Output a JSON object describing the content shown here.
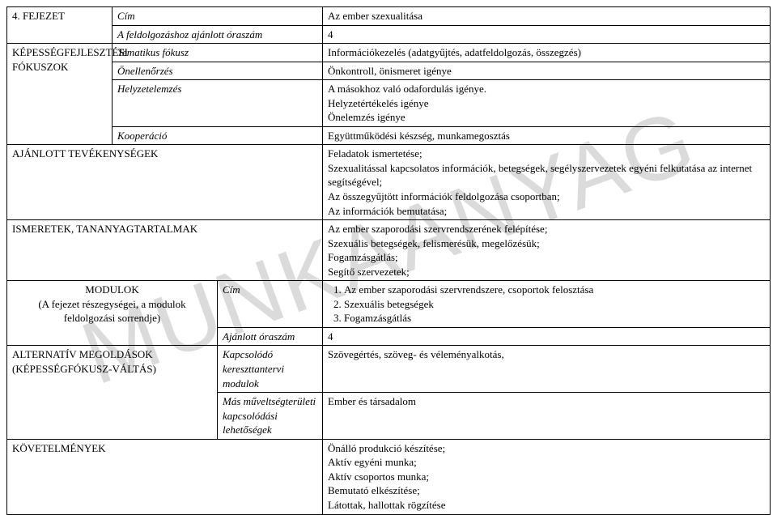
{
  "watermark_text": "MUNKAANYAG",
  "rows": {
    "fejezet": {
      "left": "4. FEJEZET",
      "label": "Cím",
      "value": "Az ember szexualitása"
    },
    "oraszam": {
      "label": "A feldolgozáshoz ajánlott óraszám",
      "value": "4"
    },
    "tematikus": {
      "label": "Tematikus fókusz",
      "value": "Információkezelés (adatgyűjtés, adatfeldolgozás, összegzés)"
    },
    "onellen": {
      "label": "Önellenőrzés",
      "value": "Önkontroll, önismeret igénye"
    },
    "kepesseg_left": "KÉPESSÉGFEJLESZTÉSI FÓKUSZOK",
    "helyzet": {
      "label": "Helyzetelemzés",
      "value": "A másokhoz való odafordulás igénye.\nHelyzetértékelés igénye\nÖnelemzés igénye"
    },
    "koop": {
      "label": "Kooperáció",
      "value": "Együttműködési készség, munkamegosztás"
    },
    "ajanlott": {
      "left": "AJÁNLOTT TEVÉKENYSÉGEK",
      "value": "Feladatok ismertetése;\nSzexualitással kapcsolatos információk, betegségek, segélyszervezetek egyéni felkutatása az internet segítségével;\nAz összegyűjtött információk feldolgozása csoportban;\nAz információk bemutatása;"
    },
    "ismeretek": {
      "left": "ISMERETEK, TANANYAGTARTALMAK",
      "value": "Az ember szaporodási szervrendszerének felépítése;\nSzexuális betegségek, felismerésük, megelőzésük;\nFogamzásgátlás;\nSegítő szervezetek;"
    },
    "modulok_left": "MODULOK\n(A fejezet részegységei, a modulok feldolgozási sorrendje)",
    "mod_cim": {
      "label": "Cím",
      "list": [
        "Az ember szaporodási szervrendszere, csoportok felosztása",
        "Szexuális betegségek",
        "Fogamzásgátlás"
      ]
    },
    "mod_ora": {
      "label": "Ajánlott óraszám",
      "value": "4"
    },
    "alt_left": "ALTERNATÍV MEGOLDÁSOK (KÉPESSÉGFÓKUSZ-VÁLTÁS)",
    "kapcs": {
      "label": "Kapcsolódó kereszttantervi modulok",
      "value": "Szövegértés, szöveg- és véleményalkotás,"
    },
    "mas": {
      "label": "Más műveltségterületi kapcsolódási lehetőségek",
      "value": "Ember és társadalom"
    },
    "kovet": {
      "left": "KÖVETELMÉNYEK",
      "value": "Önálló produkció készítése;\nAktív egyéni munka;\nAktív csoportos munka;\nBemutató elkészítése;\nLátottak, hallottak rögzítése"
    }
  }
}
